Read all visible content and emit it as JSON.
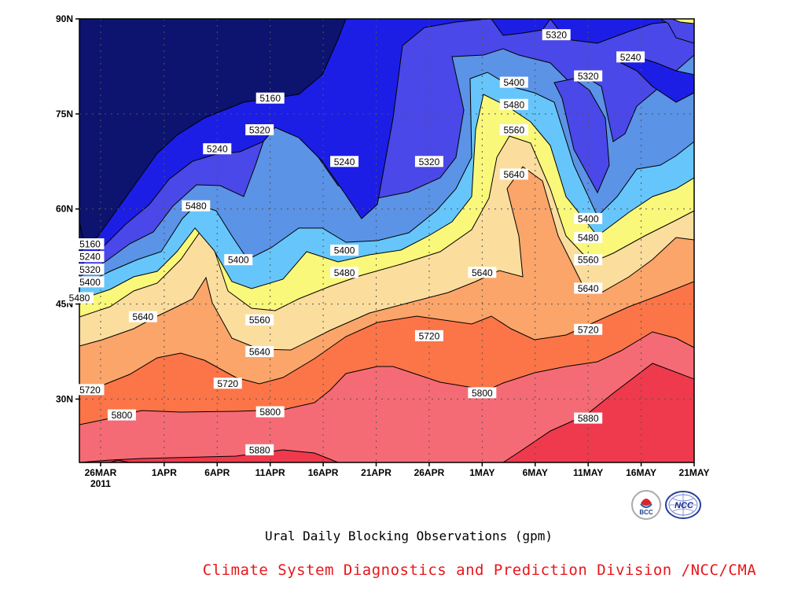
{
  "chart_data": {
    "type": "heatmap",
    "subtype": "filled-contour",
    "title": "Ural Daily Blocking Observations (gpm)",
    "xlabel": "",
    "ylabel": "",
    "x_ticks": [
      "26MAR",
      "1APR",
      "6APR",
      "11APR",
      "16APR",
      "21APR",
      "26APR",
      "1MAY",
      "6MAY",
      "11MAY",
      "16MAY",
      "21MAY"
    ],
    "x_year_label": "2011",
    "y_ticks": [
      "90N",
      "75N",
      "60N",
      "45N",
      "30N"
    ],
    "y_tick_values": [
      90,
      75,
      60,
      45,
      30
    ],
    "ylim": [
      20,
      90
    ],
    "xlim_days": [
      "2011-03-24",
      "2011-05-21"
    ],
    "contour_levels": [
      5160,
      5240,
      5320,
      5400,
      5480,
      5560,
      5640,
      5720,
      5800,
      5880
    ],
    "level_colors": [
      "#0c1470",
      "#1c1ee6",
      "#4a48e8",
      "#5b93e6",
      "#66c6fb",
      "#faf87a",
      "#fbde9e",
      "#fba56a",
      "#fb7548",
      "#f56b75",
      "#ee3a4c"
    ],
    "contour_labels": [
      {
        "date": "2011-03-25",
        "lat": 54.5,
        "value": "5160"
      },
      {
        "date": "2011-03-25",
        "lat": 52.5,
        "value": "5240"
      },
      {
        "date": "2011-03-25",
        "lat": 50.5,
        "value": "5320"
      },
      {
        "date": "2011-03-25",
        "lat": 48.5,
        "value": "5400"
      },
      {
        "date": "2011-03-24",
        "lat": 46.0,
        "value": "5480"
      },
      {
        "date": "2011-03-30",
        "lat": 43.0,
        "value": "5640"
      },
      {
        "date": "2011-03-25",
        "lat": 31.5,
        "value": "5720"
      },
      {
        "date": "2011-03-28",
        "lat": 27.5,
        "value": "5800"
      },
      {
        "date": "2011-04-06",
        "lat": 69.5,
        "value": "5240"
      },
      {
        "date": "2011-04-04",
        "lat": 60.5,
        "value": "5480"
      },
      {
        "date": "2011-04-11",
        "lat": 77.5,
        "value": "5160"
      },
      {
        "date": "2011-04-10",
        "lat": 72.5,
        "value": "5320"
      },
      {
        "date": "2011-04-08",
        "lat": 52.0,
        "value": "5400"
      },
      {
        "date": "2011-04-10",
        "lat": 42.5,
        "value": "5560"
      },
      {
        "date": "2011-04-10",
        "lat": 37.5,
        "value": "5640"
      },
      {
        "date": "2011-04-07",
        "lat": 32.5,
        "value": "5720"
      },
      {
        "date": "2011-04-11",
        "lat": 28.0,
        "value": "5800"
      },
      {
        "date": "2011-04-10",
        "lat": 22.0,
        "value": "5880"
      },
      {
        "date": "2011-04-18",
        "lat": 67.5,
        "value": "5240"
      },
      {
        "date": "2011-04-18",
        "lat": 53.5,
        "value": "5400"
      },
      {
        "date": "2011-04-18",
        "lat": 50.0,
        "value": "5480"
      },
      {
        "date": "2011-04-26",
        "lat": 67.5,
        "value": "5320"
      },
      {
        "date": "2011-04-26",
        "lat": 40.0,
        "value": "5720"
      },
      {
        "date": "2011-05-01",
        "lat": 50.0,
        "value": "5640"
      },
      {
        "date": "2011-05-01",
        "lat": 31.0,
        "value": "5800"
      },
      {
        "date": "2011-05-04",
        "lat": 80.0,
        "value": "5400"
      },
      {
        "date": "2011-05-04",
        "lat": 76.5,
        "value": "5480"
      },
      {
        "date": "2011-05-04",
        "lat": 72.5,
        "value": "5560"
      },
      {
        "date": "2011-05-04",
        "lat": 65.5,
        "value": "5640"
      },
      {
        "date": "2011-05-08",
        "lat": 87.5,
        "value": "5320"
      },
      {
        "date": "2011-05-11",
        "lat": 81.0,
        "value": "5320"
      },
      {
        "date": "2011-05-11",
        "lat": 58.5,
        "value": "5400"
      },
      {
        "date": "2011-05-11",
        "lat": 55.5,
        "value": "5480"
      },
      {
        "date": "2011-05-11",
        "lat": 52.0,
        "value": "5560"
      },
      {
        "date": "2011-05-11",
        "lat": 47.5,
        "value": "5640"
      },
      {
        "date": "2011-05-11",
        "lat": 41.0,
        "value": "5720"
      },
      {
        "date": "2011-05-11",
        "lat": 27.0,
        "value": "5880"
      },
      {
        "date": "2011-05-15",
        "lat": 84.0,
        "value": "5240"
      }
    ],
    "legend": "none",
    "grid": true
  },
  "captions": {
    "title": "Ural Daily Blocking Observations (gpm)",
    "credit": "Climate System Diagnostics and Prediction Division /NCC/CMA"
  },
  "logos": {
    "left": "BCC",
    "right": "NCC"
  }
}
